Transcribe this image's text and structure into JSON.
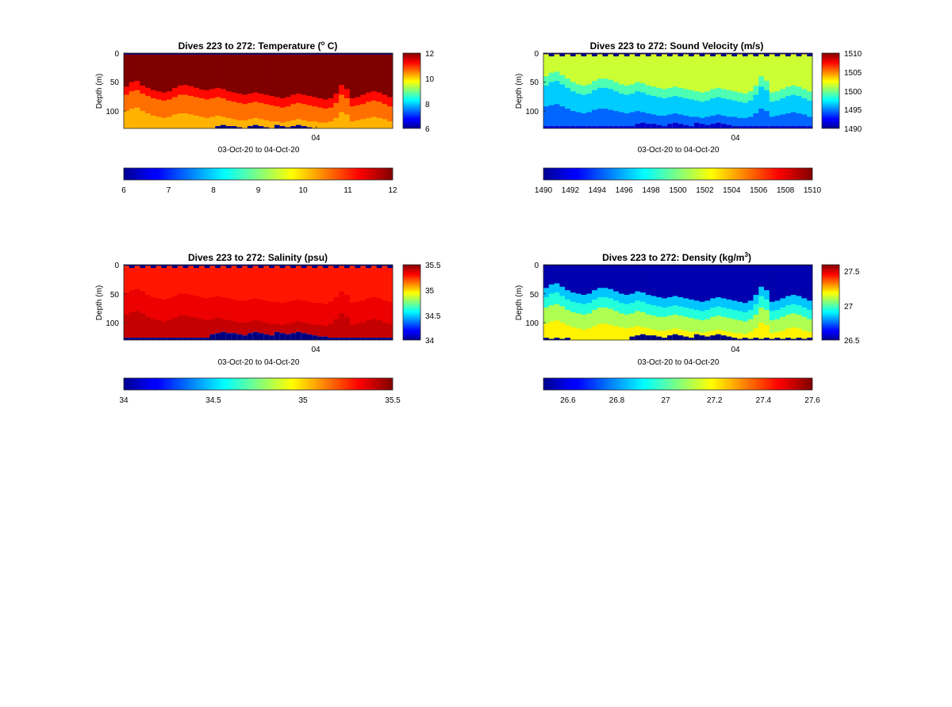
{
  "chart_data": [
    {
      "type": "heatmap",
      "title": "Dives 223 to 272: Temperature (° C)",
      "title_parts": [
        "Dives 223 to 272: Temperature (",
        "o",
        " C)"
      ],
      "title_style": "sup",
      "ylabel": "Depth (m)",
      "xlabel": "03-Oct-20 to 04-Oct-20",
      "x_ticks": [
        "04"
      ],
      "y_ticks": [
        "0",
        "50",
        "100"
      ],
      "ylim": [
        0,
        130
      ],
      "y_reversed": true,
      "clim": [
        6,
        12
      ],
      "side_colorbar_ticks": [
        "6",
        "8",
        "10",
        "12"
      ],
      "bottom_colorbar_ticks": [
        "6",
        "7",
        "8",
        "9",
        "10",
        "11",
        "12"
      ],
      "colormap": "jet",
      "surface_band_value": 6,
      "surface_band_style": "solid",
      "layers": [
        {
          "value": 12.0,
          "top": 0
        },
        {
          "value": 11.2,
          "top": [
            58,
            50,
            48,
            56,
            60,
            64,
            66,
            68,
            66,
            60,
            56,
            55,
            57,
            60,
            63,
            64,
            62,
            60,
            62,
            66,
            68,
            70,
            72,
            70,
            68,
            70,
            72,
            74,
            76,
            78,
            76,
            72,
            70,
            72,
            74,
            76,
            78,
            80,
            78,
            70,
            55,
            62,
            78,
            76,
            72,
            68,
            66,
            68,
            72,
            76
          ]
        },
        {
          "value": 10.6,
          "top": [
            72,
            66,
            64,
            70,
            74,
            78,
            80,
            82,
            80,
            76,
            72,
            72,
            74,
            76,
            78,
            80,
            78,
            76,
            78,
            82,
            84,
            86,
            88,
            86,
            84,
            86,
            88,
            90,
            92,
            94,
            92,
            88,
            86,
            88,
            90,
            92,
            94,
            96,
            94,
            86,
            72,
            78,
            92,
            90,
            88,
            84,
            82,
            84,
            88,
            92
          ]
        },
        {
          "value": 10.2,
          "top": [
            100,
            96,
            94,
            100,
            104,
            108,
            110,
            112,
            110,
            106,
            104,
            104,
            106,
            108,
            110,
            112,
            110,
            108,
            110,
            112,
            114,
            116,
            116,
            114,
            112,
            114,
            116,
            118,
            118,
            120,
            118,
            116,
            114,
            116,
            118,
            118,
            120,
            120,
            118,
            112,
            102,
            106,
            118,
            116,
            114,
            112,
            110,
            112,
            114,
            118
          ]
        }
      ],
      "bottom_gap": [
        130,
        130,
        130,
        130,
        130,
        130,
        130,
        130,
        130,
        130,
        130,
        130,
        130,
        130,
        130,
        130,
        130,
        126,
        124,
        126,
        126,
        128,
        130,
        126,
        124,
        126,
        128,
        130,
        124,
        126,
        128,
        126,
        124,
        126,
        128,
        130,
        130,
        130,
        130,
        130,
        130,
        130,
        130,
        130,
        130,
        130,
        130,
        130,
        130,
        130
      ],
      "bottom_gap_value": 6
    },
    {
      "type": "heatmap",
      "title": "Dives 223 to 272: Sound Velocity (m/s)",
      "title_parts": [
        "Dives 223 to 272: Sound Velocity (m/s)"
      ],
      "title_style": "plain",
      "ylabel": "Depth (m)",
      "xlabel": "03-Oct-20 to 04-Oct-20",
      "x_ticks": [
        "04"
      ],
      "y_ticks": [
        "0",
        "50",
        "100"
      ],
      "ylim": [
        0,
        130
      ],
      "y_reversed": true,
      "clim": [
        1490,
        1510
      ],
      "side_colorbar_ticks": [
        "1490",
        "1495",
        "1500",
        "1505",
        "1510"
      ],
      "bottom_colorbar_ticks": [
        "1490",
        "1492",
        "1494",
        "1496",
        "1498",
        "1500",
        "1502",
        "1504",
        "1506",
        "1508",
        "1510"
      ],
      "colormap": "jet",
      "surface_band_value": 1490,
      "surface_band_style": "checker",
      "surface_band_alt_value": 1502,
      "layers": [
        {
          "value": 1501.5,
          "top": 4
        },
        {
          "value": 1499.0,
          "top": [
            40,
            34,
            32,
            38,
            44,
            50,
            54,
            56,
            54,
            48,
            44,
            44,
            46,
            50,
            54,
            56,
            54,
            50,
            52,
            56,
            58,
            60,
            62,
            60,
            58,
            60,
            62,
            64,
            66,
            68,
            66,
            62,
            60,
            62,
            64,
            66,
            68,
            70,
            66,
            56,
            40,
            48,
            68,
            66,
            62,
            58,
            56,
            58,
            62,
            66
          ]
        },
        {
          "value": 1496.5,
          "top": [
            56,
            50,
            48,
            54,
            60,
            66,
            70,
            72,
            70,
            64,
            60,
            60,
            62,
            66,
            70,
            72,
            70,
            66,
            68,
            72,
            74,
            76,
            78,
            76,
            74,
            76,
            78,
            80,
            82,
            84,
            82,
            78,
            76,
            78,
            80,
            82,
            84,
            86,
            82,
            72,
            58,
            64,
            84,
            82,
            78,
            74,
            72,
            74,
            78,
            82
          ]
        },
        {
          "value": 1494.5,
          "top": [
            92,
            90,
            88,
            92,
            96,
            100,
            102,
            104,
            102,
            98,
            96,
            96,
            98,
            100,
            102,
            104,
            102,
            100,
            102,
            104,
            106,
            108,
            108,
            106,
            104,
            106,
            108,
            110,
            110,
            112,
            110,
            108,
            106,
            108,
            110,
            110,
            112,
            112,
            110,
            104,
            96,
            100,
            110,
            108,
            106,
            104,
            102,
            104,
            106,
            110
          ]
        }
      ],
      "bottom_gap": [
        126,
        126,
        126,
        126,
        126,
        126,
        126,
        126,
        126,
        126,
        126,
        126,
        126,
        126,
        126,
        126,
        126,
        122,
        120,
        122,
        122,
        124,
        126,
        122,
        120,
        122,
        124,
        126,
        120,
        122,
        124,
        122,
        120,
        122,
        124,
        126,
        126,
        126,
        126,
        126,
        126,
        126,
        126,
        126,
        126,
        126,
        126,
        126,
        126,
        126
      ],
      "bottom_gap_value": 1491.5
    },
    {
      "type": "heatmap",
      "title": "Dives 223 to 272: Salinity (psu)",
      "title_parts": [
        "Dives 223 to 272: Salinity (psu)"
      ],
      "title_style": "plain",
      "ylabel": "Depth (m)",
      "xlabel": "03-Oct-20 to 04-Oct-20",
      "x_ticks": [
        "04"
      ],
      "y_ticks": [
        "0",
        "50",
        "100"
      ],
      "ylim": [
        0,
        130
      ],
      "y_reversed": true,
      "clim": [
        34,
        35.5
      ],
      "side_colorbar_ticks": [
        "34",
        "34.5",
        "35",
        "35.5"
      ],
      "bottom_colorbar_ticks": [
        "34",
        "34.5",
        "35",
        "35.5"
      ],
      "colormap": "jet",
      "surface_band_value": 34,
      "surface_band_style": "checker",
      "surface_band_alt_value": 35.25,
      "layers": [
        {
          "value": 35.28,
          "top": 4
        },
        {
          "value": 35.34,
          "top": [
            48,
            44,
            42,
            46,
            52,
            56,
            58,
            60,
            58,
            54,
            50,
            50,
            52,
            54,
            56,
            58,
            56,
            54,
            56,
            58,
            60,
            62,
            62,
            60,
            58,
            60,
            62,
            64,
            64,
            66,
            64,
            62,
            60,
            62,
            64,
            66,
            66,
            68,
            64,
            56,
            46,
            52,
            66,
            64,
            62,
            58,
            56,
            58,
            62,
            64
          ]
        },
        {
          "value": 35.4,
          "top": [
            86,
            82,
            80,
            84,
            90,
            94,
            96,
            98,
            96,
            92,
            88,
            88,
            90,
            92,
            94,
            96,
            94,
            92,
            94,
            96,
            98,
            100,
            100,
            98,
            96,
            98,
            100,
            102,
            102,
            104,
            102,
            100,
            98,
            100,
            102,
            104,
            104,
            106,
            102,
            94,
            84,
            90,
            104,
            102,
            100,
            96,
            94,
            96,
            100,
            102
          ]
        }
      ],
      "bottom_gap": [
        126,
        126,
        126,
        126,
        126,
        126,
        126,
        126,
        126,
        126,
        126,
        126,
        126,
        126,
        126,
        126,
        120,
        118,
        116,
        118,
        118,
        120,
        122,
        118,
        116,
        118,
        120,
        122,
        116,
        118,
        120,
        118,
        116,
        118,
        120,
        122,
        124,
        124,
        126,
        126,
        126,
        126,
        126,
        126,
        126,
        126,
        126,
        126,
        126,
        126
      ],
      "bottom_gap_value": 34
    },
    {
      "type": "heatmap",
      "title": "Dives 223 to 272: Density (kg/m3)",
      "title_parts": [
        "Dives 223 to 272: Density (kg/m",
        "3",
        ")"
      ],
      "title_style": "sup",
      "ylabel": "Depth (m)",
      "xlabel": "03-Oct-20 to 04-Oct-20",
      "x_ticks": [
        "04"
      ],
      "y_ticks": [
        "0",
        "50",
        "100"
      ],
      "ylim": [
        0,
        130
      ],
      "y_reversed": true,
      "clim": [
        26.5,
        27.6
      ],
      "side_colorbar_ticks": [
        "26.5",
        "27",
        "27.5"
      ],
      "bottom_colorbar_ticks": [
        "26.6",
        "26.8",
        "27",
        "27.2",
        "27.4",
        "27.6"
      ],
      "colormap": "jet",
      "surface_band_value": 26.5,
      "surface_band_style": "solid",
      "layers": [
        {
          "value": 26.55,
          "top": 0
        },
        {
          "value": 26.85,
          "top": [
            40,
            34,
            32,
            38,
            44,
            48,
            50,
            52,
            50,
            44,
            40,
            40,
            42,
            46,
            50,
            52,
            50,
            46,
            48,
            52,
            54,
            56,
            58,
            56,
            54,
            56,
            58,
            60,
            62,
            64,
            62,
            58,
            56,
            58,
            60,
            62,
            64,
            66,
            62,
            52,
            38,
            44,
            64,
            62,
            58,
            54,
            52,
            54,
            58,
            62
          ]
        },
        {
          "value": 26.95,
          "top": [
            56,
            50,
            48,
            54,
            60,
            64,
            66,
            68,
            66,
            60,
            56,
            56,
            58,
            62,
            66,
            68,
            66,
            62,
            64,
            68,
            70,
            72,
            74,
            72,
            70,
            72,
            74,
            76,
            78,
            80,
            78,
            74,
            72,
            74,
            76,
            78,
            80,
            82,
            78,
            68,
            54,
            60,
            80,
            78,
            74,
            70,
            68,
            70,
            74,
            78
          ]
        },
        {
          "value": 27.1,
          "top": [
            74,
            70,
            68,
            72,
            78,
            82,
            84,
            86,
            84,
            78,
            74,
            74,
            76,
            80,
            84,
            86,
            84,
            80,
            82,
            86,
            88,
            90,
            90,
            88,
            86,
            88,
            90,
            92,
            94,
            96,
            94,
            90,
            88,
            90,
            92,
            94,
            96,
            98,
            94,
            86,
            74,
            78,
            96,
            94,
            90,
            86,
            84,
            86,
            90,
            94
          ]
        },
        {
          "value": 27.2,
          "top": [
            102,
            98,
            96,
            100,
            104,
            108,
            110,
            112,
            110,
            106,
            102,
            102,
            104,
            106,
            108,
            110,
            108,
            106,
            108,
            110,
            112,
            114,
            114,
            112,
            110,
            112,
            114,
            116,
            116,
            118,
            116,
            114,
            112,
            114,
            116,
            118,
            118,
            120,
            116,
            110,
            100,
            104,
            118,
            116,
            114,
            110,
            108,
            110,
            114,
            116
          ]
        }
      ],
      "bottom_gap": [
        126,
        128,
        126,
        128,
        126,
        130,
        130,
        130,
        130,
        130,
        130,
        130,
        130,
        130,
        130,
        130,
        124,
        122,
        120,
        122,
        122,
        124,
        126,
        122,
        120,
        122,
        124,
        126,
        120,
        122,
        124,
        122,
        120,
        122,
        124,
        126,
        128,
        126,
        128,
        126,
        128,
        126,
        128,
        126,
        128,
        126,
        128,
        126,
        128,
        126
      ],
      "bottom_gap_value": 26.5
    }
  ]
}
